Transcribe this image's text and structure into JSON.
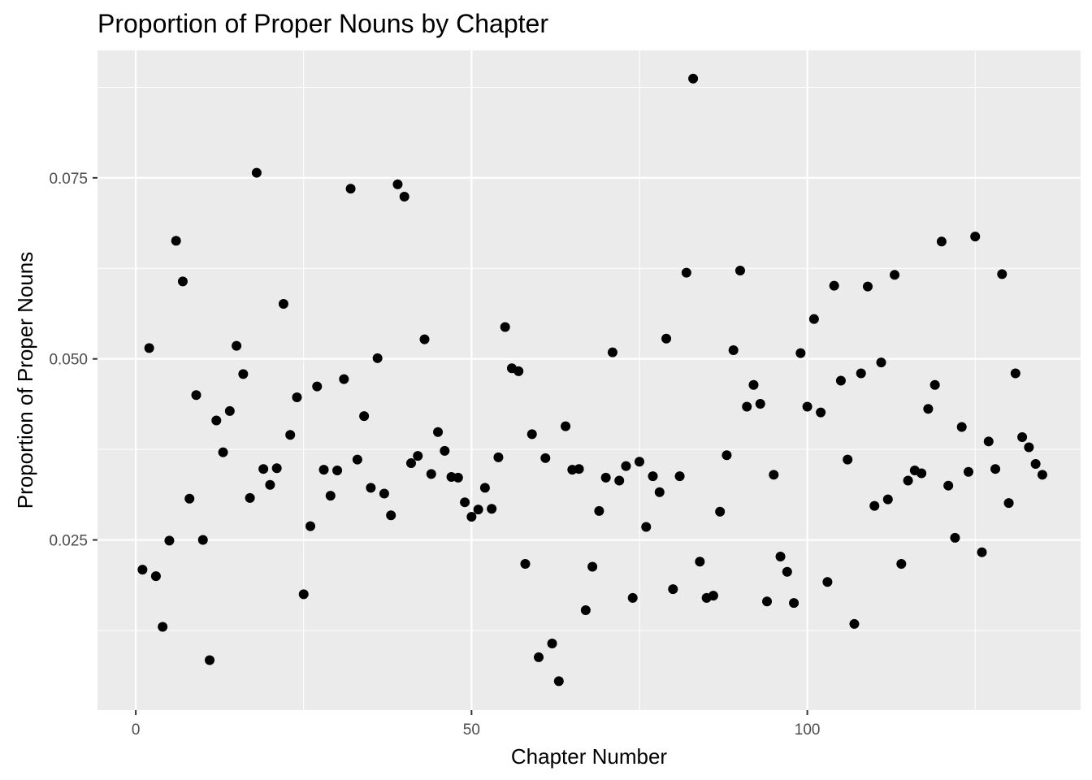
{
  "chart_data": {
    "type": "scatter",
    "title": "Proportion of Proper Nouns by Chapter",
    "xlabel": "Chapter Number",
    "ylabel": "Proportion of Proper Nouns",
    "xlim": [
      -5.7,
      140.7
    ],
    "ylim": [
      0.0015,
      0.0926
    ],
    "x_ticks": [
      0,
      50,
      100
    ],
    "x_tick_labels": [
      "0",
      "50",
      "100"
    ],
    "y_ticks": [
      0.025,
      0.05,
      0.075
    ],
    "y_tick_labels": [
      "0.025",
      "0.050",
      "0.075"
    ],
    "grid": true,
    "legend": "none",
    "colors": {
      "panel": "#ebebeb",
      "grid": "#ffffff",
      "point": "#000000",
      "tick": "#333333"
    },
    "points": [
      {
        "x": 1,
        "y": 0.0209
      },
      {
        "x": 2,
        "y": 0.0515
      },
      {
        "x": 3,
        "y": 0.02
      },
      {
        "x": 4,
        "y": 0.013
      },
      {
        "x": 5,
        "y": 0.0249
      },
      {
        "x": 6,
        "y": 0.0663
      },
      {
        "x": 7,
        "y": 0.0607
      },
      {
        "x": 8,
        "y": 0.0307
      },
      {
        "x": 9,
        "y": 0.045
      },
      {
        "x": 10,
        "y": 0.025
      },
      {
        "x": 11,
        "y": 0.0084
      },
      {
        "x": 12,
        "y": 0.0415
      },
      {
        "x": 13,
        "y": 0.0371
      },
      {
        "x": 14,
        "y": 0.0428
      },
      {
        "x": 15,
        "y": 0.0518
      },
      {
        "x": 16,
        "y": 0.0479
      },
      {
        "x": 17,
        "y": 0.0308
      },
      {
        "x": 18,
        "y": 0.0757
      },
      {
        "x": 19,
        "y": 0.0348
      },
      {
        "x": 20,
        "y": 0.0326
      },
      {
        "x": 21,
        "y": 0.0349
      },
      {
        "x": 22,
        "y": 0.0576
      },
      {
        "x": 23,
        "y": 0.0395
      },
      {
        "x": 24,
        "y": 0.0447
      },
      {
        "x": 25,
        "y": 0.0175
      },
      {
        "x": 26,
        "y": 0.0269
      },
      {
        "x": 27,
        "y": 0.0462
      },
      {
        "x": 28,
        "y": 0.0347
      },
      {
        "x": 29,
        "y": 0.0311
      },
      {
        "x": 30,
        "y": 0.0346
      },
      {
        "x": 31,
        "y": 0.0472
      },
      {
        "x": 32,
        "y": 0.0735
      },
      {
        "x": 33,
        "y": 0.0361
      },
      {
        "x": 34,
        "y": 0.0421
      },
      {
        "x": 35,
        "y": 0.0322
      },
      {
        "x": 36,
        "y": 0.0501
      },
      {
        "x": 37,
        "y": 0.0314
      },
      {
        "x": 38,
        "y": 0.0284
      },
      {
        "x": 39,
        "y": 0.0741
      },
      {
        "x": 40,
        "y": 0.0724
      },
      {
        "x": 41,
        "y": 0.0356
      },
      {
        "x": 42,
        "y": 0.0366
      },
      {
        "x": 43,
        "y": 0.0527
      },
      {
        "x": 44,
        "y": 0.0341
      },
      {
        "x": 45,
        "y": 0.0399
      },
      {
        "x": 46,
        "y": 0.0373
      },
      {
        "x": 47,
        "y": 0.0337
      },
      {
        "x": 48,
        "y": 0.0336
      },
      {
        "x": 49,
        "y": 0.0302
      },
      {
        "x": 50,
        "y": 0.0282
      },
      {
        "x": 51,
        "y": 0.0292
      },
      {
        "x": 52,
        "y": 0.0322
      },
      {
        "x": 53,
        "y": 0.0293
      },
      {
        "x": 54,
        "y": 0.0364
      },
      {
        "x": 55,
        "y": 0.0544
      },
      {
        "x": 56,
        "y": 0.0487
      },
      {
        "x": 57,
        "y": 0.0483
      },
      {
        "x": 58,
        "y": 0.0217
      },
      {
        "x": 59,
        "y": 0.0396
      },
      {
        "x": 60,
        "y": 0.0088
      },
      {
        "x": 61,
        "y": 0.0363
      },
      {
        "x": 62,
        "y": 0.0107
      },
      {
        "x": 63,
        "y": 0.0055
      },
      {
        "x": 64,
        "y": 0.0407
      },
      {
        "x": 65,
        "y": 0.0347
      },
      {
        "x": 66,
        "y": 0.0348
      },
      {
        "x": 67,
        "y": 0.0153
      },
      {
        "x": 68,
        "y": 0.0213
      },
      {
        "x": 69,
        "y": 0.029
      },
      {
        "x": 70,
        "y": 0.0336
      },
      {
        "x": 71,
        "y": 0.0509
      },
      {
        "x": 72,
        "y": 0.0332
      },
      {
        "x": 73,
        "y": 0.0352
      },
      {
        "x": 74,
        "y": 0.017
      },
      {
        "x": 75,
        "y": 0.0358
      },
      {
        "x": 76,
        "y": 0.0268
      },
      {
        "x": 77,
        "y": 0.0338
      },
      {
        "x": 78,
        "y": 0.0316
      },
      {
        "x": 79,
        "y": 0.0528
      },
      {
        "x": 80,
        "y": 0.0182
      },
      {
        "x": 81,
        "y": 0.0338
      },
      {
        "x": 82,
        "y": 0.0619
      },
      {
        "x": 83,
        "y": 0.0887
      },
      {
        "x": 84,
        "y": 0.022
      },
      {
        "x": 85,
        "y": 0.017
      },
      {
        "x": 86,
        "y": 0.0173
      },
      {
        "x": 87,
        "y": 0.0289
      },
      {
        "x": 88,
        "y": 0.0367
      },
      {
        "x": 89,
        "y": 0.0512
      },
      {
        "x": 90,
        "y": 0.0622
      },
      {
        "x": 91,
        "y": 0.0434
      },
      {
        "x": 92,
        "y": 0.0464
      },
      {
        "x": 93,
        "y": 0.0438
      },
      {
        "x": 94,
        "y": 0.0165
      },
      {
        "x": 95,
        "y": 0.034
      },
      {
        "x": 96,
        "y": 0.0227
      },
      {
        "x": 97,
        "y": 0.0206
      },
      {
        "x": 98,
        "y": 0.0163
      },
      {
        "x": 99,
        "y": 0.0508
      },
      {
        "x": 100,
        "y": 0.0434
      },
      {
        "x": 101,
        "y": 0.0555
      },
      {
        "x": 102,
        "y": 0.0426
      },
      {
        "x": 103,
        "y": 0.0192
      },
      {
        "x": 104,
        "y": 0.0601
      },
      {
        "x": 105,
        "y": 0.047
      },
      {
        "x": 106,
        "y": 0.0361
      },
      {
        "x": 107,
        "y": 0.0134
      },
      {
        "x": 108,
        "y": 0.048
      },
      {
        "x": 109,
        "y": 0.06
      },
      {
        "x": 110,
        "y": 0.0297
      },
      {
        "x": 111,
        "y": 0.0495
      },
      {
        "x": 112,
        "y": 0.0306
      },
      {
        "x": 113,
        "y": 0.0616
      },
      {
        "x": 114,
        "y": 0.0217
      },
      {
        "x": 115,
        "y": 0.0332
      },
      {
        "x": 116,
        "y": 0.0346
      },
      {
        "x": 117,
        "y": 0.0342
      },
      {
        "x": 118,
        "y": 0.0431
      },
      {
        "x": 119,
        "y": 0.0464
      },
      {
        "x": 120,
        "y": 0.0662
      },
      {
        "x": 121,
        "y": 0.0325
      },
      {
        "x": 122,
        "y": 0.0253
      },
      {
        "x": 123,
        "y": 0.0406
      },
      {
        "x": 124,
        "y": 0.0344
      },
      {
        "x": 125,
        "y": 0.0669
      },
      {
        "x": 126,
        "y": 0.0233
      },
      {
        "x": 127,
        "y": 0.0386
      },
      {
        "x": 128,
        "y": 0.0348
      },
      {
        "x": 129,
        "y": 0.0617
      },
      {
        "x": 130,
        "y": 0.0301
      },
      {
        "x": 131,
        "y": 0.048
      },
      {
        "x": 132,
        "y": 0.0392
      },
      {
        "x": 133,
        "y": 0.0378
      },
      {
        "x": 134,
        "y": 0.0355
      },
      {
        "x": 135,
        "y": 0.034
      }
    ]
  }
}
